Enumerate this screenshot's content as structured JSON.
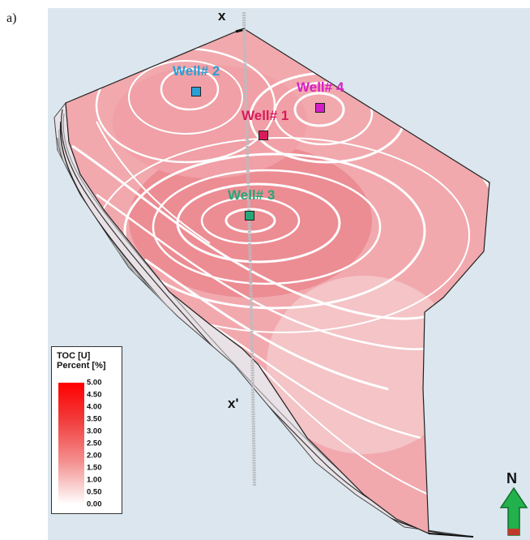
{
  "panel_label": "a)",
  "section_labels": {
    "start": "x",
    "end": "x'"
  },
  "wells": [
    {
      "label": "Well# 2",
      "color": "#2a9fd6"
    },
    {
      "label": "Well# 4",
      "color": "#d61ec8"
    },
    {
      "label": "Well# 1",
      "color": "#d81a5a"
    },
    {
      "label": "Well# 3",
      "color": "#25a878"
    }
  ],
  "legend": {
    "title_line1": "TOC [U]",
    "title_line2": "Percent [%]",
    "ticks": [
      "5.00",
      "4.50",
      "4.00",
      "3.50",
      "3.00",
      "2.50",
      "2.00",
      "1.50",
      "1.00",
      "0.50",
      "0.00"
    ],
    "color_max": "#ff0000",
    "color_min": "#ffffff"
  },
  "north_arrow": {
    "label": "N",
    "color": "#22b14c"
  },
  "background_color": "#dbe6ee"
}
